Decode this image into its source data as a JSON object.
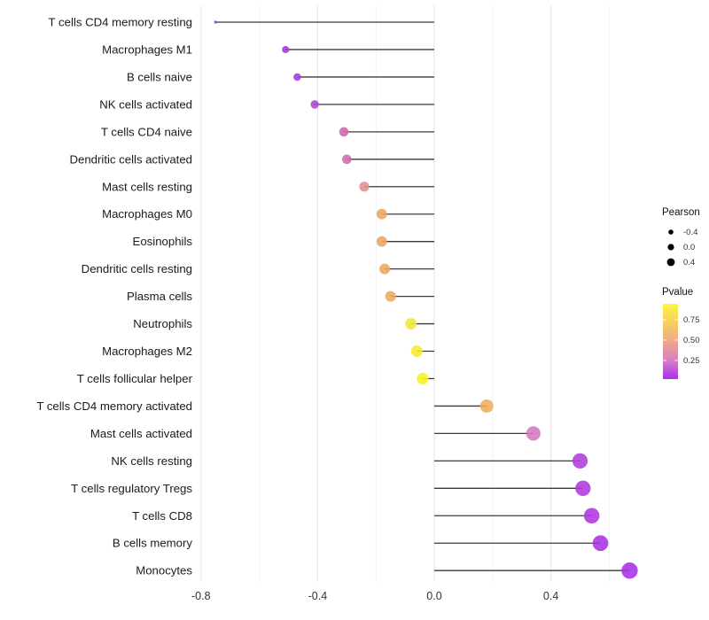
{
  "chart_data": {
    "type": "lollipop",
    "title": "",
    "xlabel": "",
    "ylabel": "",
    "orientation": "horizontal",
    "baseline": 0,
    "grid": true,
    "legend_position": "right",
    "x_axis": {
      "range": [
        -0.85,
        0.74
      ],
      "major_ticks": [
        -0.8,
        -0.4,
        0.0,
        0.4
      ],
      "major_tick_labels": [
        "-0.8",
        "-0.4",
        "0.0",
        "0.4"
      ],
      "minor_ticks": [
        -0.6,
        -0.2,
        0.2,
        0.6
      ]
    },
    "categories": [
      "T cells CD4 memory resting",
      "Macrophages M1",
      "B cells naive",
      "NK cells activated",
      "T cells CD4 naive",
      "Dendritic cells activated",
      "Mast cells resting",
      "Macrophages M0",
      "Eosinophils",
      "Dendritic cells resting",
      "Plasma cells",
      "Neutrophils",
      "Macrophages M2",
      "T cells follicular helper",
      "T cells CD4 memory activated",
      "Mast cells activated",
      "NK cells resting",
      "T cells regulatory  Tregs",
      "T cells CD8",
      "B cells memory",
      "Monocytes"
    ],
    "series": [
      {
        "name": "Pearson",
        "values": [
          -0.75,
          -0.51,
          -0.47,
          -0.41,
          -0.31,
          -0.3,
          -0.24,
          -0.18,
          -0.18,
          -0.17,
          -0.15,
          -0.08,
          -0.06,
          -0.04,
          0.18,
          0.34,
          0.5,
          0.51,
          0.54,
          0.57,
          0.67
        ]
      },
      {
        "name": "Pvalue (approx, read from color scale)",
        "values": [
          0.02,
          0.06,
          0.09,
          0.12,
          0.28,
          0.29,
          0.46,
          0.57,
          0.57,
          0.58,
          0.6,
          0.85,
          0.88,
          0.92,
          0.57,
          0.33,
          0.12,
          0.11,
          0.09,
          0.07,
          0.03
        ]
      }
    ],
    "dot_colors": [
      "#9733e3",
      "#a438de",
      "#a93cd8",
      "#ad46d2",
      "#ce68b0",
      "#ce6cae",
      "#e08f8d",
      "#eba463",
      "#eba463",
      "#eca75f",
      "#edaa5c",
      "#f2e636",
      "#f5ec2b",
      "#f8f21d",
      "#efad5b",
      "#d678c2",
      "#b13fd9",
      "#b13bdb",
      "#ae36de",
      "#ab32e2",
      "#a92fe8"
    ]
  },
  "legend": {
    "size": {
      "title": "Pearson",
      "entries": [
        {
          "label": "-0.4",
          "value": -0.4
        },
        {
          "label": "0.0",
          "value": 0.0
        },
        {
          "label": "0.4",
          "value": 0.4
        }
      ],
      "dot_color": "#000000"
    },
    "color": {
      "title": "Pvalue",
      "tick_labels": [
        "0.75",
        "0.50",
        "0.25"
      ],
      "tick_values": [
        0.75,
        0.5,
        0.25
      ],
      "gradient_stops_top_to_bottom": [
        "#fcf63d",
        "#f6cf60",
        "#eda98b",
        "#d77fc1",
        "#ab30ec"
      ]
    }
  },
  "colors": {
    "background": "#ffffff",
    "stem": "#3a3a3a",
    "axis_text": "#333333",
    "category_text": "#1a1a1a",
    "grid_major": "#e6e6e6",
    "grid_minor": "#f2f2f2",
    "legend_text": "#333333"
  }
}
